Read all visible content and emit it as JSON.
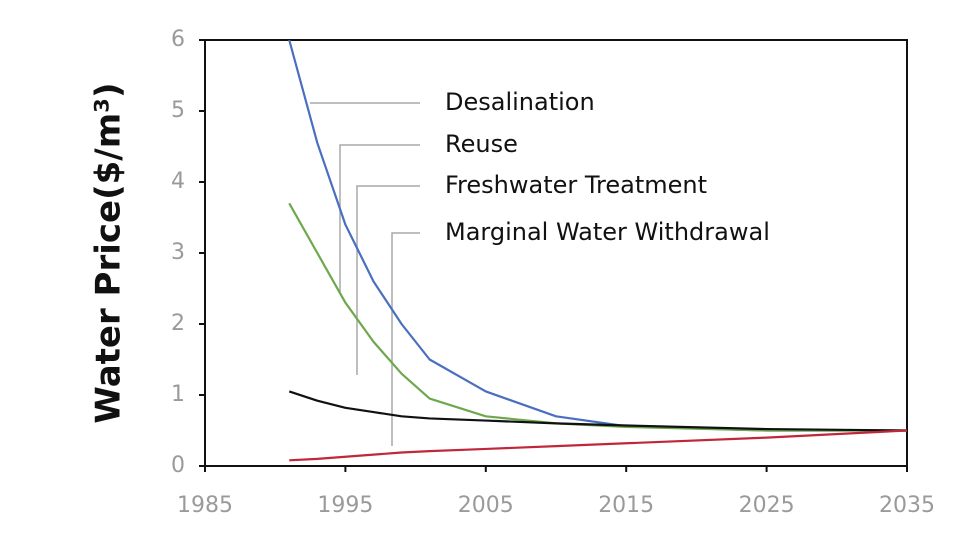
{
  "chart_data": {
    "type": "line",
    "ylabel": "Water Price($/m³)",
    "x": [
      1991,
      1993,
      1995,
      1997,
      1999,
      2001,
      2005,
      2010,
      2015,
      2025,
      2035
    ],
    "series": [
      {
        "name": "Desalination",
        "color": "#4a6fc0",
        "values": [
          6,
          4.55,
          3.4,
          2.6,
          2.0,
          1.5,
          1.05,
          0.7,
          0.56,
          0.5,
          0.5
        ]
      },
      {
        "name": "Reuse",
        "color": "#6ea84e",
        "values": [
          3.7,
          3.0,
          2.3,
          1.75,
          1.3,
          0.95,
          0.7,
          0.6,
          0.55,
          0.5,
          0.5
        ]
      },
      {
        "name": "Freshwater Treatment",
        "color": "#111111",
        "values": [
          1.05,
          0.92,
          0.82,
          0.76,
          0.7,
          0.67,
          0.64,
          0.6,
          0.57,
          0.52,
          0.5
        ]
      },
      {
        "name": "Marginal Water Withdrawal",
        "color": "#c0283a",
        "values": [
          0.08,
          0.1,
          0.13,
          0.16,
          0.19,
          0.21,
          0.24,
          0.28,
          0.32,
          0.4,
          0.5
        ]
      }
    ],
    "xlim": [
      1985,
      2035
    ],
    "xticks": [
      1985,
      1995,
      2005,
      2015,
      2025,
      2035
    ],
    "ylim": [
      0,
      6
    ],
    "yticks": [
      0,
      1,
      2,
      3,
      4,
      5,
      6
    ]
  }
}
